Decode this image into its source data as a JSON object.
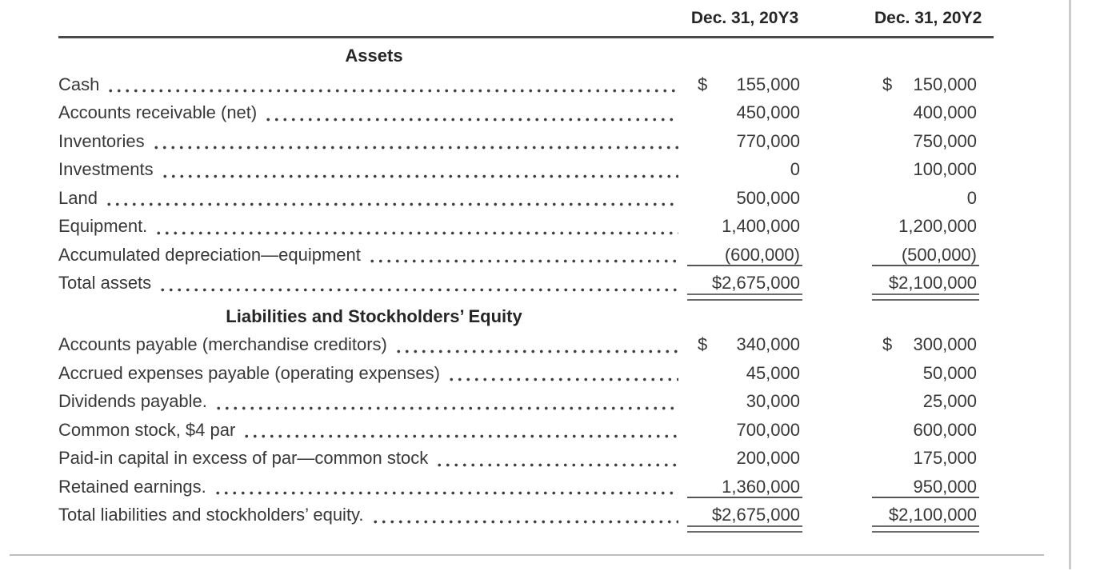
{
  "table": {
    "currency_symbol": "$",
    "columns": [
      {
        "label": "Dec. 31, 20Y3"
      },
      {
        "label": "Dec. 31, 20Y2"
      }
    ],
    "sections": [
      {
        "title": "Assets",
        "rows": [
          {
            "label": "Cash",
            "values": [
              "155,000",
              "150,000"
            ],
            "dollar": "spaced",
            "rule": "none"
          },
          {
            "label": "Accounts receivable (net)",
            "values": [
              "450,000",
              "400,000"
            ],
            "dollar": "none",
            "rule": "none"
          },
          {
            "label": "Inventories",
            "values": [
              "770,000",
              "750,000"
            ],
            "dollar": "none",
            "rule": "none"
          },
          {
            "label": "Investments",
            "values": [
              "0",
              "100,000"
            ],
            "dollar": "none",
            "rule": "none"
          },
          {
            "label": "Land",
            "values": [
              "500,000",
              "0"
            ],
            "dollar": "none",
            "rule": "none"
          },
          {
            "label": "Equipment.",
            "values": [
              "1,400,000",
              "1,200,000"
            ],
            "dollar": "none",
            "rule": "none"
          },
          {
            "label": "Accumulated depreciation—equipment",
            "values": [
              "(600,000)",
              "(500,000)"
            ],
            "dollar": "none",
            "rule": "single"
          },
          {
            "label": "Total assets",
            "values": [
              "2,675,000",
              "2,100,000"
            ],
            "dollar": "attached",
            "rule": "double"
          }
        ]
      },
      {
        "title": "Liabilities and Stockholders’ Equity",
        "rows": [
          {
            "label": "Accounts payable (merchandise creditors)",
            "values": [
              "340,000",
              "300,000"
            ],
            "dollar": "spaced",
            "rule": "none"
          },
          {
            "label": "Accrued expenses payable (operating expenses)",
            "values": [
              "45,000",
              "50,000"
            ],
            "dollar": "none",
            "rule": "none"
          },
          {
            "label": "Dividends payable.",
            "values": [
              "30,000",
              "25,000"
            ],
            "dollar": "none",
            "rule": "none"
          },
          {
            "label": "Common stock, $4 par",
            "values": [
              "700,000",
              "600,000"
            ],
            "dollar": "none",
            "rule": "none"
          },
          {
            "label": "Paid-in capital in excess of par—common stock",
            "values": [
              "200,000",
              "175,000"
            ],
            "dollar": "none",
            "rule": "none"
          },
          {
            "label": "Retained earnings.",
            "values": [
              "1,360,000",
              "950,000"
            ],
            "dollar": "none",
            "rule": "single"
          },
          {
            "label": "Total liabilities and stockholders’ equity.",
            "values": [
              "2,675,000",
              "2,100,000"
            ],
            "dollar": "attached",
            "rule": "double"
          }
        ]
      }
    ]
  },
  "colors": {
    "text": "#383838",
    "header_rule": "#4a4a4a",
    "total_rule": "#6b6b6b",
    "frame_light": "#c6c6c6"
  }
}
